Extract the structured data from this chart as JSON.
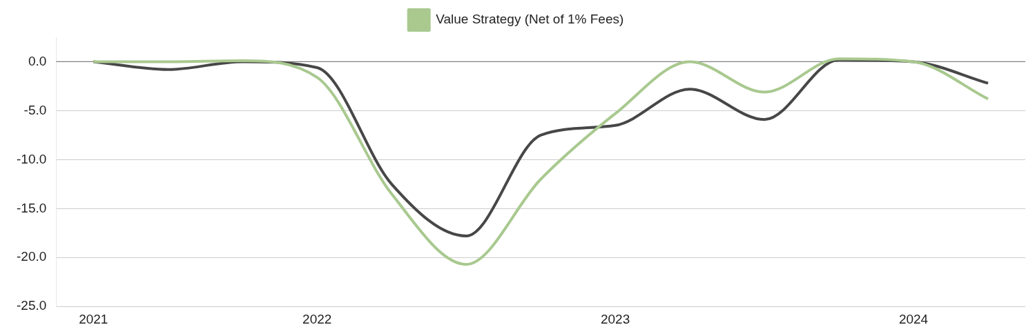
{
  "chart_data": {
    "type": "line",
    "categories": [
      "2021",
      null,
      null,
      "2022",
      null,
      null,
      null,
      "2023",
      null,
      null,
      null,
      "2024",
      null
    ],
    "series": [
      {
        "name": "Value Strategy (Net of 1% Fees)",
        "color": "#a9c98f",
        "values": [
          0,
          0,
          0.1,
          -1.6,
          -13.5,
          -20.7,
          -12,
          -5.3,
          0,
          -3.1,
          0.3,
          0,
          -3.8
        ]
      },
      {
        "color": "#474747",
        "values": [
          0,
          -0.8,
          0,
          -0.6,
          -12.5,
          -17.8,
          -7.5,
          -6.5,
          -2.8,
          -5.9,
          0.2,
          0,
          -2.2
        ]
      }
    ],
    "ylim": [
      -25,
      2.5
    ],
    "yticks": [
      {
        "value": -25,
        "label": "-25.0"
      },
      {
        "value": -20,
        "label": "-20.0"
      },
      {
        "value": -15,
        "label": "-15.0"
      },
      {
        "value": -10,
        "label": "-10.0"
      },
      {
        "value": -5,
        "label": "-5.0"
      },
      {
        "value": 0,
        "label": "0.0"
      }
    ],
    "ref_lines": [
      {
        "axis": "y",
        "value": 0,
        "color": "#808080"
      }
    ],
    "grid": "y",
    "legend": "top",
    "marker": "none",
    "line_style": "solid"
  }
}
